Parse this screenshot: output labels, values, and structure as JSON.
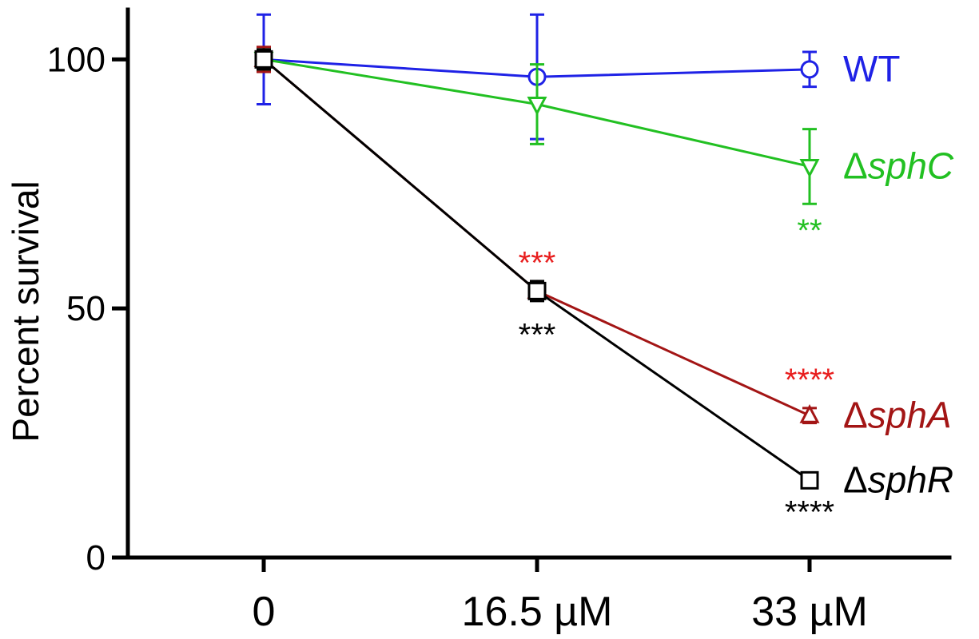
{
  "chart_data": {
    "type": "line",
    "ylabel": "Percent survival",
    "xlabel": "",
    "categories": [
      "0",
      "16.5 µM",
      "33 µM"
    ],
    "ylim": [
      0,
      110
    ],
    "yticks": [
      0,
      50,
      100
    ],
    "grid": false,
    "series": [
      {
        "name": "WT",
        "label_prefix": "",
        "label_italic": "",
        "label_text": "WT",
        "color": "#1f22e6",
        "marker": "circle",
        "values": [
          100,
          96.5,
          98
        ],
        "errors": [
          9,
          12.5,
          3.5
        ],
        "significance": [
          "",
          "",
          ""
        ]
      },
      {
        "name": "ΔsphC",
        "label_prefix": "Δ",
        "label_italic": "sphC",
        "label_text": "",
        "color": "#22c022",
        "marker": "triangle-down",
        "values": [
          100,
          91,
          78.5
        ],
        "errors": [
          2,
          8,
          7.5
        ],
        "significance": [
          "",
          "",
          "**"
        ]
      },
      {
        "name": "ΔsphA",
        "label_prefix": "Δ",
        "label_italic": "sphA",
        "label_text": "",
        "color": "#a31515",
        "marker": "triangle-up",
        "values": [
          100,
          53.5,
          28.5
        ],
        "errors": [
          2.5,
          1.5,
          1.5
        ],
        "significance": [
          "",
          "***",
          "****"
        ]
      },
      {
        "name": "ΔsphR",
        "label_prefix": "Δ",
        "label_italic": "sphR",
        "label_text": "",
        "color": "#000000",
        "marker": "square",
        "values": [
          100,
          53.5,
          15.5
        ],
        "errors": [
          2,
          2,
          1
        ],
        "significance": [
          "",
          "***",
          "****"
        ]
      }
    ],
    "significance_colors": {
      "ΔsphC": "#22c022",
      "ΔsphA": "#e81c1c",
      "ΔsphR": "#000000"
    }
  }
}
